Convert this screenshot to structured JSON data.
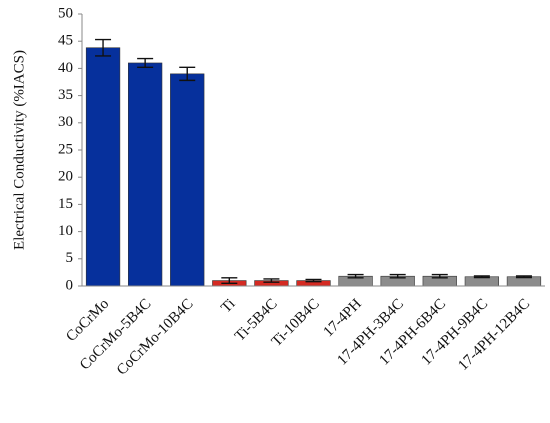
{
  "chart_data": {
    "type": "bar",
    "y_label": "Electrical Conductivity (%IACS)",
    "categories": [
      "CoCrMo",
      "CoCrMo-5B4C",
      "CoCrMo-10B4C",
      "Ti",
      "Ti-5B4C",
      "Ti-10B4C",
      "17-4PH",
      "17-4PH-3B4C",
      "17-4PH-6B4C",
      "17-4PH-9B4C",
      "17-4PH-12B4C"
    ],
    "values": [
      43.8,
      41.0,
      39.0,
      1.0,
      1.0,
      1.0,
      1.8,
      1.8,
      1.8,
      1.7,
      1.7
    ],
    "errors": [
      1.5,
      0.8,
      1.2,
      0.5,
      0.3,
      0.2,
      0.3,
      0.3,
      0.3,
      0.15,
      0.15
    ],
    "colors": [
      "#06309c",
      "#06309c",
      "#06309c",
      "#d42a22",
      "#d42a22",
      "#d42a22",
      "#8c8c8c",
      "#8c8c8c",
      "#8c8c8c",
      "#8c8c8c",
      "#8c8c8c"
    ],
    "ylim": [
      0,
      50
    ],
    "yticks": [
      0,
      5,
      10,
      15,
      20,
      25,
      30,
      35,
      40,
      45,
      50
    ],
    "grid": false
  }
}
